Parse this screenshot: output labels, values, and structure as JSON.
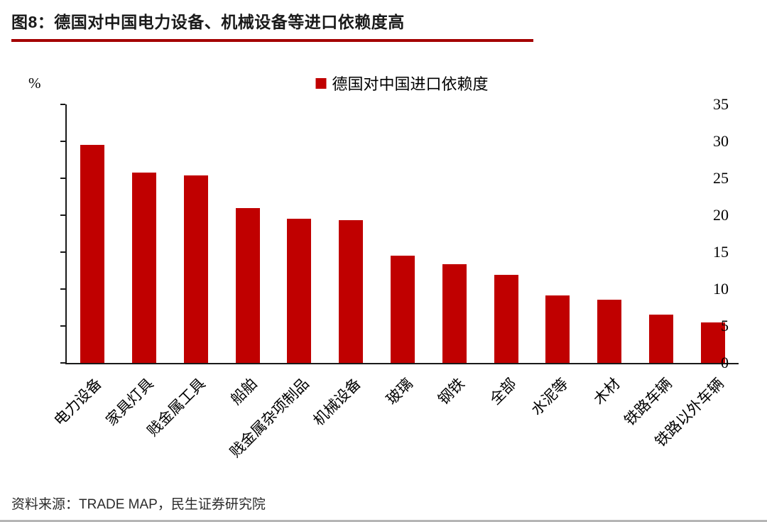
{
  "header": {
    "title": "图8：德国对中国电力设备、机械设备等进口依赖度高"
  },
  "chart_data": {
    "type": "bar",
    "title": "图8：德国对中国电力设备、机械设备等进口依赖度高",
    "legend": [
      "德国对中国进口依赖度"
    ],
    "legend_position": "top-center",
    "unit_label": "%",
    "categories": [
      "电力设备",
      "家具灯具",
      "贱金属工具",
      "船舶",
      "贱金属杂项制品",
      "机械设备",
      "玻璃",
      "钢铁",
      "全部",
      "水泥等",
      "木材",
      "铁路车辆",
      "铁路以外车辆"
    ],
    "values": [
      29.5,
      25.8,
      25.4,
      21.0,
      19.5,
      19.3,
      14.5,
      13.4,
      11.9,
      9.1,
      8.6,
      6.5,
      5.5
    ],
    "ylim": [
      0,
      35
    ],
    "yticks": [
      0,
      5,
      10,
      15,
      20,
      25,
      30,
      35
    ],
    "grid": false,
    "colors": {
      "bar": "#c00000",
      "title_underline": "#a40000"
    }
  },
  "footer": {
    "source": "资料来源：TRADE MAP，民生证券研究院"
  }
}
